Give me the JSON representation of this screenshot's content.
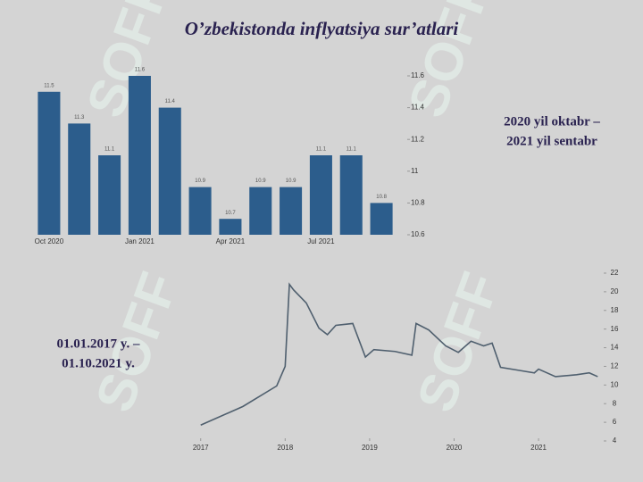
{
  "title": "O’zbekistonda inflyatsiya sur’atlari",
  "watermark": "SOFF",
  "chart_data": [
    {
      "type": "bar",
      "color": "#2c5d8c",
      "annotation": [
        "2020 yil oktabr –",
        "2021 yil sentabr"
      ],
      "categories": [
        "Oct 2020",
        null,
        null,
        "Jan 2021",
        null,
        null,
        "Apr 2021",
        null,
        null,
        "Jul 2021",
        null,
        null
      ],
      "values": [
        11.5,
        11.3,
        11.1,
        11.6,
        11.4,
        10.9,
        10.7,
        10.9,
        10.9,
        11.1,
        11.1,
        10.8
      ],
      "ylim": [
        10.6,
        11.6
      ],
      "yticks": [
        10.6,
        10.8,
        11,
        11.2,
        11.4,
        11.6
      ]
    },
    {
      "type": "line",
      "color": "#4f5f6e",
      "annotation": [
        "01.01.2017 y. –",
        "01.10.2021 y."
      ],
      "x": [
        2017.0,
        2017.5,
        2017.9,
        2018.0,
        2018.05,
        2018.1,
        2018.25,
        2018.4,
        2018.5,
        2018.6,
        2018.8,
        2018.95,
        2019.05,
        2019.3,
        2019.5,
        2019.55,
        2019.7,
        2019.9,
        2020.05,
        2020.2,
        2020.35,
        2020.45,
        2020.55,
        2020.75,
        2020.95,
        2021.0,
        2021.2,
        2021.45,
        2021.6,
        2021.7
      ],
      "values": [
        5.7,
        7.7,
        9.9,
        12,
        20.8,
        20.2,
        18.8,
        16.1,
        15.4,
        16.4,
        16.6,
        13,
        13.8,
        13.6,
        13.2,
        16.6,
        15.9,
        14.2,
        13.5,
        14.7,
        14.2,
        14.5,
        11.9,
        11.6,
        11.3,
        11.7,
        10.9,
        11.1,
        11.3,
        10.9
      ],
      "xlim": [
        2016.95,
        2021.75
      ],
      "xticks": [
        2017,
        2018,
        2019,
        2020,
        2021
      ],
      "ylim": [
        4,
        22
      ],
      "yticks": [
        4,
        6,
        8,
        10,
        12,
        14,
        16,
        18,
        20,
        22
      ]
    }
  ]
}
